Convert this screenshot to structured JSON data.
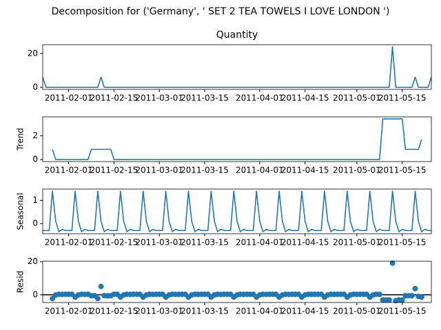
{
  "chart_data": {
    "type": "decomposition",
    "title": "Decomposition for ('Germany', ' SET 2 TEA TOWELS I LOVE LONDON ')",
    "x": [
      "2011-01-24",
      "2011-01-25",
      "2011-01-26",
      "2011-01-27",
      "2011-01-28",
      "2011-01-29",
      "2011-01-30",
      "2011-01-31",
      "2011-02-01",
      "2011-02-02",
      "2011-02-03",
      "2011-02-04",
      "2011-02-05",
      "2011-02-06",
      "2011-02-07",
      "2011-02-08",
      "2011-02-09",
      "2011-02-10",
      "2011-02-11",
      "2011-02-12",
      "2011-02-13",
      "2011-02-14",
      "2011-02-15",
      "2011-02-16",
      "2011-02-17",
      "2011-02-18",
      "2011-02-19",
      "2011-02-20",
      "2011-02-21",
      "2011-02-22",
      "2011-02-23",
      "2011-02-24",
      "2011-02-25",
      "2011-02-26",
      "2011-02-27",
      "2011-02-28",
      "2011-03-01",
      "2011-03-02",
      "2011-03-03",
      "2011-03-04",
      "2011-03-05",
      "2011-03-06",
      "2011-03-07",
      "2011-03-08",
      "2011-03-09",
      "2011-03-10",
      "2011-03-11",
      "2011-03-12",
      "2011-03-13",
      "2011-03-14",
      "2011-03-15",
      "2011-03-16",
      "2011-03-17",
      "2011-03-18",
      "2011-03-19",
      "2011-03-20",
      "2011-03-21",
      "2011-03-22",
      "2011-03-23",
      "2011-03-24",
      "2011-03-25",
      "2011-03-26",
      "2011-03-27",
      "2011-03-28",
      "2011-03-29",
      "2011-03-30",
      "2011-03-31",
      "2011-04-01",
      "2011-04-02",
      "2011-04-03",
      "2011-04-04",
      "2011-04-05",
      "2011-04-06",
      "2011-04-07",
      "2011-04-08",
      "2011-04-09",
      "2011-04-10",
      "2011-04-11",
      "2011-04-12",
      "2011-04-13",
      "2011-04-14",
      "2011-04-15",
      "2011-04-16",
      "2011-04-17",
      "2011-04-18",
      "2011-04-19",
      "2011-04-20",
      "2011-04-21",
      "2011-04-22",
      "2011-04-23",
      "2011-04-24",
      "2011-04-25",
      "2011-04-26",
      "2011-04-27",
      "2011-04-28",
      "2011-04-29",
      "2011-04-30",
      "2011-05-01",
      "2011-05-02",
      "2011-05-03",
      "2011-05-04",
      "2011-05-05",
      "2011-05-06",
      "2011-05-07",
      "2011-05-08",
      "2011-05-09",
      "2011-05-10",
      "2011-05-11",
      "2011-05-12",
      "2011-05-13",
      "2011-05-14",
      "2011-05-15",
      "2011-05-16",
      "2011-05-17",
      "2011-05-18",
      "2011-05-19",
      "2011-05-20",
      "2011-05-21",
      "2011-05-22",
      "2011-05-23",
      "2011-05-24"
    ],
    "xlim": [
      "2011-01-24",
      "2011-05-24"
    ],
    "xticks": [
      "2011-02-01",
      "2011-02-15",
      "2011-03-01",
      "2011-03-15",
      "2011-04-01",
      "2011-04-15",
      "2011-05-01",
      "2011-05-15"
    ],
    "panels": [
      {
        "type": "line",
        "title": "Quantity",
        "color": "#1f77b4",
        "ylim": [
          -1.2,
          25.2
        ],
        "yticks": [
          0,
          20
        ],
        "values": [
          6,
          0,
          0,
          0,
          0,
          0,
          0,
          0,
          0,
          0,
          0,
          0,
          0,
          0,
          0,
          0,
          0,
          0,
          6,
          0,
          0,
          0,
          0,
          0,
          0,
          0,
          0,
          0,
          0,
          0,
          0,
          0,
          0,
          0,
          0,
          0,
          0,
          0,
          0,
          0,
          0,
          0,
          0,
          0,
          0,
          0,
          0,
          0,
          0,
          0,
          0,
          0,
          0,
          0,
          0,
          0,
          0,
          0,
          0,
          0,
          0,
          0,
          0,
          0,
          0,
          0,
          0,
          0,
          0,
          0,
          0,
          0,
          0,
          0,
          0,
          0,
          0,
          0,
          0,
          0,
          0,
          0,
          0,
          0,
          0,
          0,
          0,
          0,
          0,
          0,
          0,
          0,
          0,
          0,
          0,
          0,
          0,
          0,
          0,
          0,
          0,
          0,
          0,
          0,
          0,
          0,
          0,
          0,
          24,
          0,
          0,
          0,
          0,
          0,
          0,
          6,
          0,
          0,
          0,
          0,
          6
        ]
      },
      {
        "type": "line",
        "ylabel": "Trend",
        "color": "#1f77b4",
        "ylim": [
          -0.17,
          3.6
        ],
        "yticks": [
          0,
          2
        ],
        "values": [
          null,
          null,
          null,
          0.86,
          0,
          0,
          0,
          0,
          0,
          0,
          0,
          0,
          0,
          0,
          0,
          0.86,
          0.86,
          0.86,
          0.86,
          0.86,
          0.86,
          0.86,
          0,
          0,
          0,
          0,
          0,
          0,
          0,
          0,
          0,
          0,
          0,
          0,
          0,
          0,
          0,
          0,
          0,
          0,
          0,
          0,
          0,
          0,
          0,
          0,
          0,
          0,
          0,
          0,
          0,
          0,
          0,
          0,
          0,
          0,
          0,
          0,
          0,
          0,
          0,
          0,
          0,
          0,
          0,
          0,
          0,
          0,
          0,
          0,
          0,
          0,
          0,
          0,
          0,
          0,
          0,
          0,
          0,
          0,
          0,
          0,
          0,
          0,
          0,
          0,
          0,
          0,
          0,
          0,
          0,
          0,
          0,
          0,
          0,
          0,
          0,
          0,
          0,
          0,
          0,
          0,
          0,
          0,
          0,
          3.43,
          3.43,
          3.43,
          3.43,
          3.43,
          3.43,
          3.43,
          0.86,
          0.86,
          0.86,
          0.86,
          0.86,
          1.71,
          null,
          null,
          null
        ]
      },
      {
        "type": "line",
        "ylabel": "Seasonal",
        "color": "#1f77b4",
        "ylim": [
          -0.44,
          1.49
        ],
        "yticks": [
          0,
          1
        ],
        "values": [
          -0.3,
          -0.3,
          -0.3,
          1.4,
          0.1,
          -0.35,
          -0.25,
          -0.3,
          -0.3,
          -0.3,
          1.4,
          0.1,
          -0.35,
          -0.25,
          -0.3,
          -0.3,
          -0.3,
          1.4,
          0.1,
          -0.35,
          -0.25,
          -0.3,
          -0.3,
          -0.3,
          1.4,
          0.1,
          -0.35,
          -0.25,
          -0.3,
          -0.3,
          -0.3,
          1.4,
          0.1,
          -0.35,
          -0.25,
          -0.3,
          -0.3,
          -0.3,
          1.4,
          0.1,
          -0.35,
          -0.25,
          -0.3,
          -0.3,
          -0.3,
          1.4,
          0.1,
          -0.35,
          -0.25,
          -0.3,
          -0.3,
          -0.3,
          1.4,
          0.1,
          -0.35,
          -0.25,
          -0.3,
          -0.3,
          -0.3,
          1.4,
          0.1,
          -0.35,
          -0.25,
          -0.3,
          -0.3,
          -0.3,
          1.4,
          0.1,
          -0.35,
          -0.25,
          -0.3,
          -0.3,
          -0.3,
          1.4,
          0.1,
          -0.35,
          -0.25,
          -0.3,
          -0.3,
          -0.3,
          1.4,
          0.1,
          -0.35,
          -0.25,
          -0.3,
          -0.3,
          -0.3,
          1.4,
          0.1,
          -0.35,
          -0.25,
          -0.3,
          -0.3,
          -0.3,
          1.4,
          0.1,
          -0.35,
          -0.25,
          -0.3,
          -0.3,
          -0.3,
          1.4,
          0.1,
          -0.35,
          -0.25,
          -0.3,
          -0.3,
          -0.3,
          1.4,
          0.1,
          -0.35,
          -0.25,
          -0.3,
          -0.3,
          -0.3,
          1.4,
          0.1,
          -0.35,
          -0.25,
          -0.3,
          -0.3
        ]
      },
      {
        "type": "scatter",
        "ylabel": "Resid",
        "color": "#1f77b4",
        "ylim": [
          -4.67,
          20.3
        ],
        "yticks": [
          0,
          20
        ],
        "baseline": 0,
        "values": [
          null,
          null,
          null,
          -2.26,
          -0.1,
          0.35,
          0.25,
          0.3,
          0.3,
          0.3,
          -1.4,
          -0.1,
          0.35,
          0.25,
          0.3,
          -0.56,
          -0.56,
          -2.26,
          5.04,
          -0.51,
          -0.61,
          -0.56,
          0.3,
          0.3,
          -1.4,
          -0.1,
          0.35,
          0.25,
          0.3,
          0.3,
          0.3,
          -1.4,
          -0.1,
          0.35,
          0.25,
          0.3,
          0.3,
          0.3,
          -1.4,
          -0.1,
          0.35,
          0.25,
          0.3,
          0.3,
          0.3,
          -1.4,
          -0.1,
          0.35,
          0.25,
          0.3,
          0.3,
          0.3,
          -1.4,
          -0.1,
          0.35,
          0.25,
          0.3,
          0.3,
          0.3,
          -1.4,
          -0.1,
          0.35,
          0.25,
          0.3,
          0.3,
          0.3,
          -1.4,
          -0.1,
          0.35,
          0.25,
          0.3,
          0.3,
          0.3,
          -1.4,
          -0.1,
          0.35,
          0.25,
          0.3,
          0.3,
          0.3,
          -1.4,
          -0.1,
          0.35,
          0.25,
          0.3,
          0.3,
          0.3,
          -1.4,
          -0.1,
          0.35,
          0.25,
          0.3,
          0.3,
          0.3,
          -1.4,
          -0.1,
          0.35,
          0.25,
          0.3,
          0.3,
          0.3,
          -1.4,
          -0.1,
          0.35,
          0.25,
          -3.13,
          -3.13,
          -3.13,
          19.17,
          -3.53,
          -3.08,
          -3.18,
          -0.56,
          -0.56,
          -0.56,
          3.74,
          -0.96,
          -1.36,
          null,
          null,
          null
        ]
      }
    ]
  }
}
